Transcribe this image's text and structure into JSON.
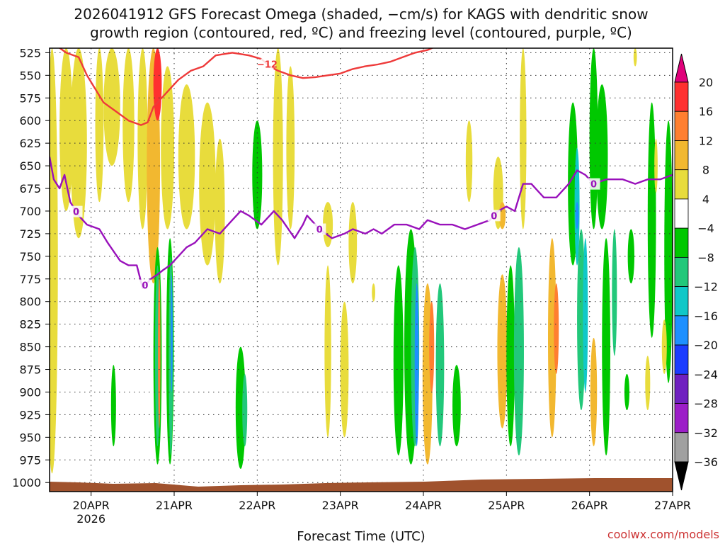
{
  "chart_data": {
    "type": "heatmap",
    "title_line1": "2026041912 GFS Forecast Omega (shaded, −cm/s) for KAGS with dendritic snow",
    "title_line2": "growth region (contoured, red, ºC) and freezing level (contoured, purple, ºC)",
    "xlabel": "Forecast Time (UTC)",
    "credit": "coolwx.com/models",
    "y_ticks": [
      525,
      550,
      575,
      600,
      625,
      650,
      675,
      700,
      725,
      750,
      775,
      800,
      825,
      850,
      875,
      900,
      925,
      950,
      975,
      1000
    ],
    "ylim": [
      1010,
      520
    ],
    "xlim": [
      -0.5,
      7.0
    ],
    "x_ticks": [
      {
        "day": 0,
        "label": "20APR",
        "sub": "2026"
      },
      {
        "day": 1,
        "label": "21APR",
        "sub": ""
      },
      {
        "day": 2,
        "label": "22APR",
        "sub": ""
      },
      {
        "day": 3,
        "label": "23APR",
        "sub": ""
      },
      {
        "day": 4,
        "label": "24APR",
        "sub": ""
      },
      {
        "day": 5,
        "label": "25APR",
        "sub": ""
      },
      {
        "day": 6,
        "label": "26APR",
        "sub": ""
      },
      {
        "day": 7,
        "label": "27APR",
        "sub": ""
      }
    ],
    "colorbar": {
      "labels": [
        "20",
        "16",
        "12",
        "8",
        "4",
        "−4",
        "−8",
        "−12",
        "−16",
        "−20",
        "−24",
        "−28",
        "−32",
        "−36"
      ],
      "colors": [
        "#e0007a",
        "#ff3030",
        "#ff7f30",
        "#f2b830",
        "#e8dc3c",
        "#ffffff",
        "#00c800",
        "#22c87a",
        "#10c8c8",
        "#1e90ff",
        "#1c3cff",
        "#7020c0",
        "#9c1ec8",
        "#a0a0a0",
        "#000000"
      ]
    },
    "series": [
      {
        "name": "freezing level 0C",
        "color": "#9911bb",
        "label": "0",
        "label_at": [
          -0.18,
          0.65,
          2.75,
          4.85,
          6.05
        ],
        "x": [
          -0.5,
          -0.45,
          -0.38,
          -0.32,
          -0.25,
          -0.15,
          -0.05,
          0.1,
          0.2,
          0.35,
          0.45,
          0.55,
          0.62,
          0.72,
          0.8,
          0.87,
          0.95,
          1.05,
          1.15,
          1.25,
          1.4,
          1.55,
          1.7,
          1.8,
          1.9,
          2.05,
          2.2,
          2.3,
          2.45,
          2.55,
          2.6,
          2.75,
          2.9,
          3.05,
          3.15,
          3.3,
          3.4,
          3.5,
          3.65,
          3.8,
          3.95,
          4.05,
          4.2,
          4.35,
          4.5,
          4.65,
          4.8,
          4.9,
          5.0,
          5.1,
          5.2,
          5.3,
          5.45,
          5.6,
          5.75,
          5.85,
          5.95,
          6.05,
          6.2,
          6.4,
          6.55,
          6.7,
          6.85,
          7.0
        ],
        "values": [
          640,
          665,
          675,
          660,
          690,
          705,
          715,
          720,
          735,
          755,
          760,
          760,
          785,
          775,
          770,
          765,
          760,
          750,
          740,
          735,
          720,
          725,
          710,
          700,
          705,
          715,
          700,
          710,
          730,
          715,
          705,
          720,
          730,
          725,
          720,
          725,
          720,
          725,
          715,
          715,
          720,
          710,
          715,
          715,
          720,
          715,
          710,
          700,
          695,
          700,
          670,
          670,
          685,
          685,
          670,
          655,
          660,
          670,
          665,
          665,
          670,
          665,
          665,
          660
        ]
      },
      {
        "name": "-12C isotherm",
        "color": "#ee3a3a",
        "label": "−12",
        "label_at": [
          2.12
        ],
        "x": [
          -0.45,
          -0.3,
          -0.15,
          -0.05,
          0.05,
          0.15,
          0.3,
          0.45,
          0.6,
          0.68,
          0.75,
          0.85,
          0.95,
          1.05,
          1.2,
          1.35,
          1.5,
          1.7,
          1.9,
          2.05,
          2.15,
          2.25,
          2.4,
          2.55,
          2.7,
          2.85,
          3.0,
          3.15,
          3.3,
          3.45,
          3.6,
          3.75,
          3.9,
          4.05,
          4.15,
          4.25
        ],
        "values": [
          515,
          525,
          530,
          550,
          565,
          580,
          590,
          600,
          605,
          602,
          585,
          575,
          565,
          555,
          545,
          540,
          528,
          525,
          528,
          532,
          540,
          545,
          550,
          553,
          552,
          550,
          548,
          543,
          540,
          538,
          535,
          530,
          525,
          522,
          518,
          514
        ]
      }
    ]
  }
}
